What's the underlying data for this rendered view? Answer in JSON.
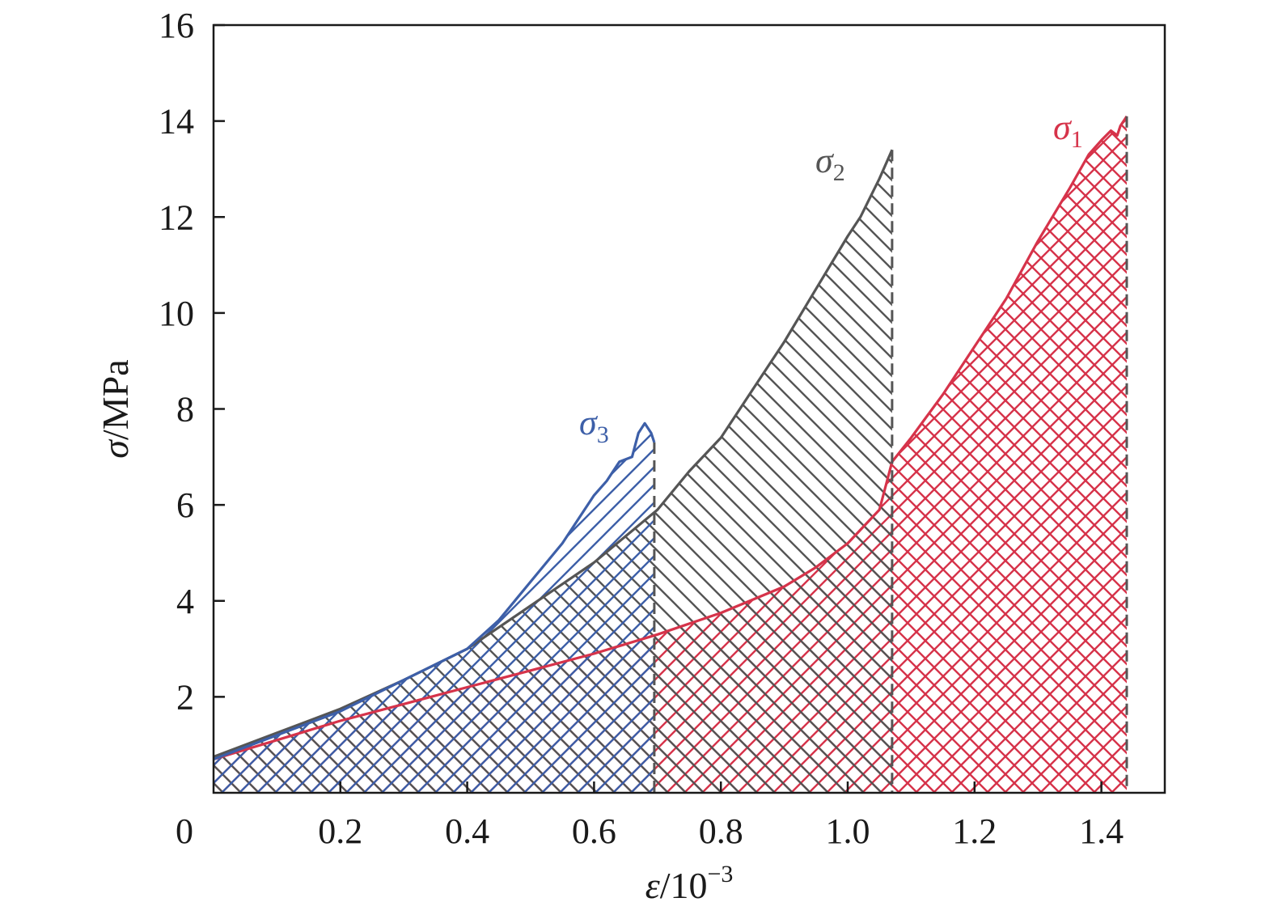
{
  "chart_data": {
    "type": "area",
    "xlabel_var": "ε",
    "xlabel_unit": "/10",
    "xlabel_exp": "−3",
    "ylabel_var": "σ",
    "ylabel_unit": "/MPa",
    "xlim": [
      0,
      1.5
    ],
    "ylim": [
      0,
      16
    ],
    "x_ticks": [
      0.2,
      0.4,
      0.6,
      0.8,
      1.0,
      1.2,
      1.4
    ],
    "x_tick_labels": [
      "0.2",
      "0.4",
      "0.6",
      "0.8",
      "1.0",
      "1.2",
      "1.4"
    ],
    "y_ticks": [
      2,
      4,
      6,
      8,
      10,
      12,
      14,
      16
    ],
    "y_tick_labels": [
      "2",
      "4",
      "6",
      "8",
      "10",
      "12",
      "14",
      "16"
    ],
    "origin_label": "0",
    "grid": false,
    "series": [
      {
        "name": "σ1",
        "label_main": "σ",
        "label_sub": "1",
        "color": "#d6334a",
        "hatch": "cross",
        "x": [
          0.0,
          0.1,
          0.2,
          0.3,
          0.4,
          0.5,
          0.6,
          0.7,
          0.8,
          0.9,
          0.95,
          1.0,
          1.05,
          1.07,
          1.1,
          1.15,
          1.2,
          1.25,
          1.3,
          1.35,
          1.38,
          1.4,
          1.415,
          1.425,
          1.43,
          1.44
        ],
        "y": [
          0.7,
          1.1,
          1.5,
          1.85,
          2.2,
          2.55,
          2.9,
          3.3,
          3.75,
          4.3,
          4.7,
          5.2,
          5.9,
          6.9,
          7.4,
          8.3,
          9.3,
          10.3,
          11.5,
          12.6,
          13.3,
          13.6,
          13.8,
          13.7,
          13.9,
          14.1
        ],
        "end_x": 1.44
      },
      {
        "name": "σ2",
        "label_main": "σ",
        "label_sub": "2",
        "color": "#555555",
        "hatch": "diag",
        "x": [
          0.0,
          0.1,
          0.2,
          0.3,
          0.4,
          0.5,
          0.6,
          0.7,
          0.75,
          0.8,
          0.85,
          0.9,
          0.95,
          1.0,
          1.02,
          1.05,
          1.07
        ],
        "y": [
          0.75,
          1.25,
          1.75,
          2.35,
          3.0,
          3.9,
          4.8,
          5.9,
          6.7,
          7.4,
          8.4,
          9.4,
          10.5,
          11.6,
          12.0,
          12.8,
          13.4
        ],
        "end_x": 1.07
      },
      {
        "name": "σ3",
        "label_main": "σ",
        "label_sub": "3",
        "color": "#3d5fa8",
        "hatch": "anti",
        "x": [
          0.0,
          0.1,
          0.2,
          0.3,
          0.4,
          0.45,
          0.5,
          0.55,
          0.58,
          0.6,
          0.62,
          0.64,
          0.66,
          0.67,
          0.68,
          0.69,
          0.695
        ],
        "y": [
          0.7,
          1.2,
          1.7,
          2.35,
          3.0,
          3.6,
          4.4,
          5.2,
          5.8,
          6.2,
          6.5,
          6.9,
          7.0,
          7.5,
          7.7,
          7.5,
          7.3
        ],
        "end_x": 0.695
      }
    ]
  }
}
